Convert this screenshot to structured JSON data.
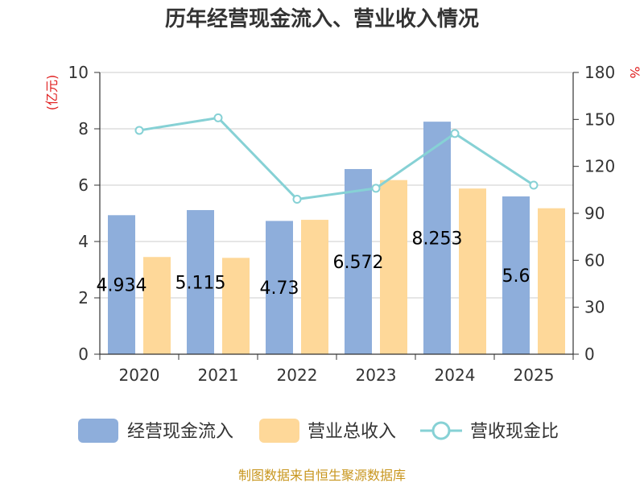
{
  "chart_data": {
    "type": "bar",
    "title": "历年经营现金流入、营业收入情况",
    "categories": [
      "2020",
      "2021",
      "2022",
      "2023",
      "2024",
      "2025"
    ],
    "left_axis": {
      "unit": "(亿元)",
      "min": 0,
      "max": 10,
      "ticks": [
        "0",
        "2",
        "4",
        "6",
        "8",
        "10"
      ]
    },
    "right_axis": {
      "unit": "%",
      "min": 0,
      "max": 180,
      "ticks": [
        "0",
        "30",
        "60",
        "90",
        "120",
        "150",
        "180"
      ]
    },
    "series": [
      {
        "name": "经营现金流入",
        "type": "bar",
        "axis": "left",
        "color": "#8eaedb",
        "values": [
          4.934,
          5.115,
          4.73,
          6.572,
          8.253,
          5.6
        ],
        "labels": [
          "4.934",
          "5.115",
          "4.73",
          "6.572",
          "8.253",
          "5.6"
        ]
      },
      {
        "name": "营业总收入",
        "type": "bar",
        "axis": "left",
        "color": "#fed899",
        "values": [
          3.45,
          3.42,
          4.77,
          6.18,
          5.88,
          5.18
        ]
      },
      {
        "name": "营收现金比",
        "type": "line",
        "axis": "right",
        "color": "#86d1d5",
        "values": [
          143,
          151,
          99,
          106,
          141,
          108
        ]
      }
    ],
    "grid": true,
    "legend": "bottom"
  },
  "footer": {
    "source": "制图数据来自恒生聚源数据库"
  }
}
